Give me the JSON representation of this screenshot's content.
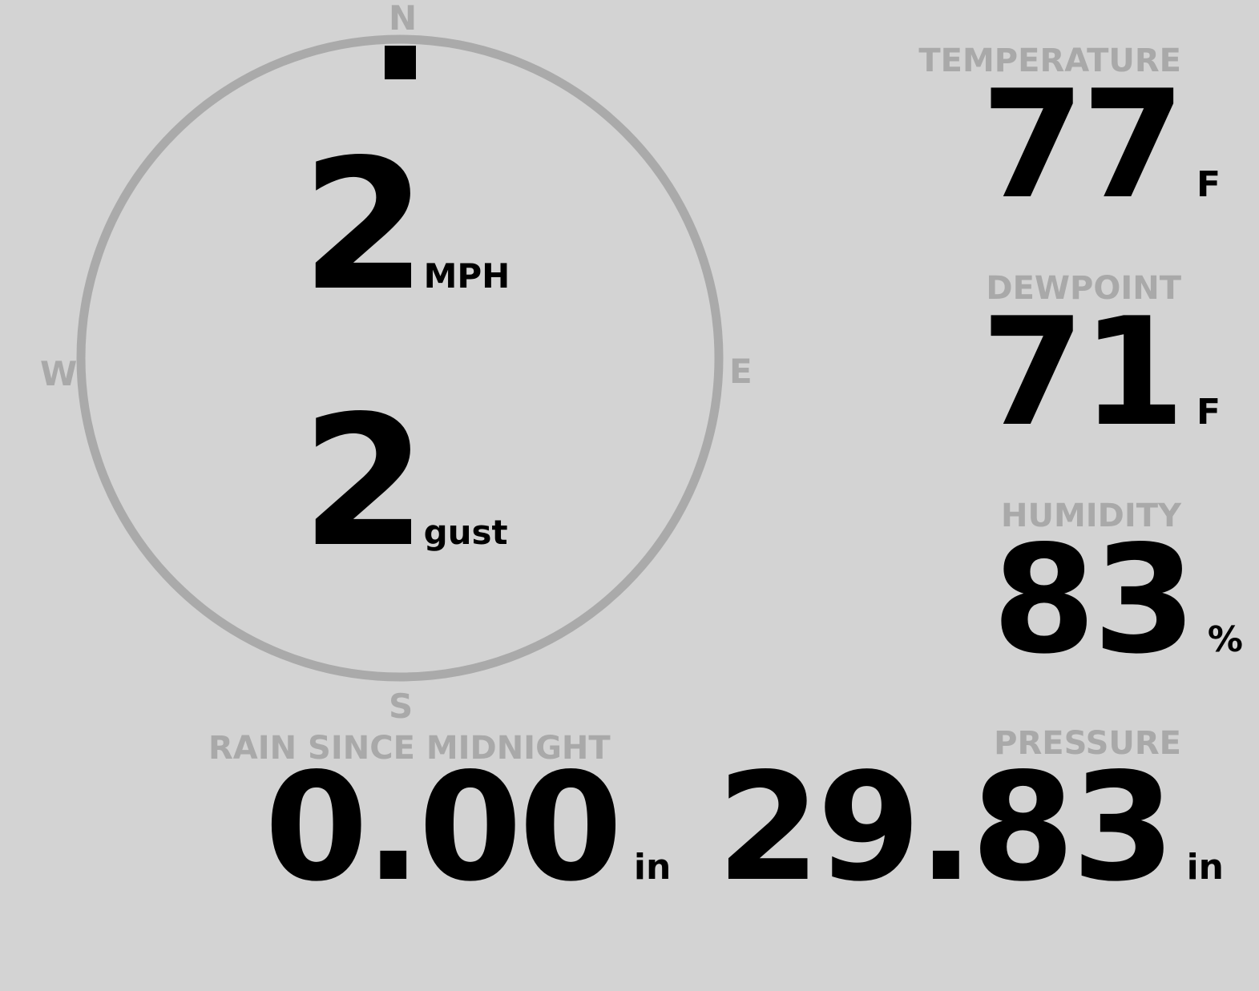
{
  "wind": {
    "speed": "2",
    "speed_unit": "MPH",
    "gust": "2",
    "gust_unit": "gust",
    "direction_deg": 0,
    "compass": {
      "n": "N",
      "e": "E",
      "s": "S",
      "w": "W"
    }
  },
  "temperature": {
    "label": "TEMPERATURE",
    "value": "77",
    "unit": "F"
  },
  "dewpoint": {
    "label": "DEWPOINT",
    "value": "71",
    "unit": "F"
  },
  "humidity": {
    "label": "HUMIDITY",
    "value": "83",
    "unit": "%"
  },
  "pressure": {
    "label": "PRESSURE",
    "value": "29.83",
    "unit": "in"
  },
  "rain": {
    "label": "RAIN SINCE MIDNIGHT",
    "value": "0.00",
    "unit": "in"
  },
  "colors": {
    "background": "#d3d3d3",
    "label": "#a9a9a9",
    "ring": "#aaaaaa",
    "value": "#000000"
  }
}
